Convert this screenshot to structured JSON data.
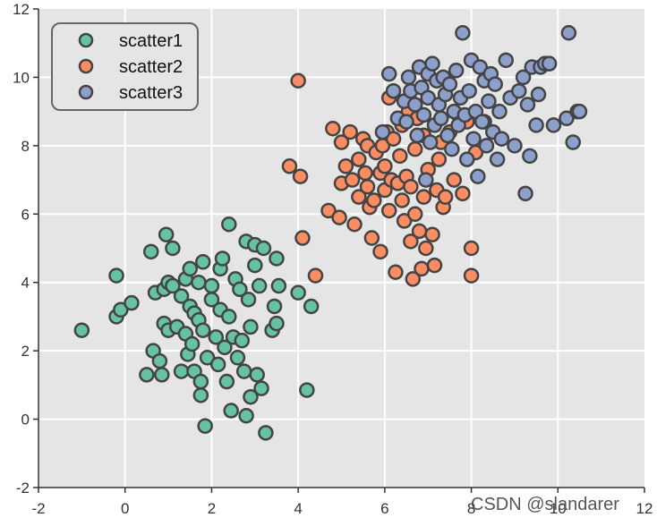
{
  "chart_data": {
    "type": "scatter",
    "title": "",
    "xlabel": "",
    "ylabel": "",
    "xlim": [
      -2,
      12
    ],
    "ylim": [
      -2,
      12
    ],
    "xticks": [
      -2,
      0,
      2,
      4,
      6,
      8,
      10,
      12
    ],
    "yticks": [
      -2,
      0,
      2,
      4,
      6,
      8,
      10,
      12
    ],
    "grid": true,
    "legend_position": "top-left",
    "series": [
      {
        "name": "scatter1",
        "color": "#66c2a5",
        "points": [
          [
            -1.0,
            2.6
          ],
          [
            -0.2,
            4.2
          ],
          [
            -0.2,
            3.0
          ],
          [
            -0.1,
            3.2
          ],
          [
            0.15,
            3.4
          ],
          [
            0.5,
            1.3
          ],
          [
            0.6,
            4.9
          ],
          [
            0.65,
            2.0
          ],
          [
            0.7,
            3.7
          ],
          [
            0.8,
            1.7
          ],
          [
            0.85,
            1.3
          ],
          [
            0.9,
            2.8
          ],
          [
            0.9,
            3.8
          ],
          [
            0.95,
            5.4
          ],
          [
            1.0,
            4.0
          ],
          [
            1.0,
            2.6
          ],
          [
            1.1,
            3.9
          ],
          [
            1.1,
            5.0
          ],
          [
            1.2,
            2.7
          ],
          [
            1.3,
            1.4
          ],
          [
            1.3,
            3.6
          ],
          [
            1.4,
            2.5
          ],
          [
            1.4,
            4.1
          ],
          [
            1.45,
            1.9
          ],
          [
            1.5,
            3.3
          ],
          [
            1.5,
            4.4
          ],
          [
            1.55,
            2.2
          ],
          [
            1.6,
            1.4
          ],
          [
            1.6,
            3.1
          ],
          [
            1.7,
            4.0
          ],
          [
            1.7,
            2.9
          ],
          [
            1.75,
            1.1
          ],
          [
            1.75,
            0.7
          ],
          [
            1.8,
            2.6
          ],
          [
            1.8,
            4.6
          ],
          [
            1.85,
            -0.2
          ],
          [
            1.9,
            1.8
          ],
          [
            2.0,
            3.5
          ],
          [
            2.0,
            3.9
          ],
          [
            2.1,
            2.4
          ],
          [
            2.15,
            1.6
          ],
          [
            2.2,
            4.4
          ],
          [
            2.2,
            3.2
          ],
          [
            2.25,
            4.7
          ],
          [
            2.3,
            2.1
          ],
          [
            2.35,
            1.1
          ],
          [
            2.4,
            5.7
          ],
          [
            2.4,
            3.0
          ],
          [
            2.45,
            0.25
          ],
          [
            2.5,
            2.4
          ],
          [
            2.55,
            4.1
          ],
          [
            2.6,
            1.8
          ],
          [
            2.65,
            3.8
          ],
          [
            2.7,
            2.3
          ],
          [
            2.75,
            1.4
          ],
          [
            2.8,
            0.1
          ],
          [
            2.8,
            5.2
          ],
          [
            2.85,
            3.5
          ],
          [
            2.9,
            2.7
          ],
          [
            2.9,
            0.65
          ],
          [
            3.0,
            4.5
          ],
          [
            3.0,
            5.1
          ],
          [
            3.05,
            1.3
          ],
          [
            3.1,
            3.9
          ],
          [
            3.15,
            0.9
          ],
          [
            3.2,
            5.0
          ],
          [
            3.25,
            -0.4
          ],
          [
            3.4,
            2.6
          ],
          [
            3.45,
            3.3
          ],
          [
            3.5,
            2.8
          ],
          [
            3.5,
            4.7
          ],
          [
            3.55,
            3.9
          ],
          [
            4.0,
            3.7
          ],
          [
            4.2,
            0.85
          ],
          [
            4.3,
            3.3
          ]
        ]
      },
      {
        "name": "scatter2",
        "color": "#fc8d62",
        "points": [
          [
            3.8,
            7.4
          ],
          [
            4.0,
            9.9
          ],
          [
            4.05,
            7.1
          ],
          [
            4.1,
            5.3
          ],
          [
            4.4,
            4.2
          ],
          [
            4.7,
            6.1
          ],
          [
            4.8,
            8.5
          ],
          [
            4.95,
            5.9
          ],
          [
            5.0,
            6.9
          ],
          [
            5.0,
            8.1
          ],
          [
            5.1,
            7.4
          ],
          [
            5.2,
            8.4
          ],
          [
            5.25,
            7.0
          ],
          [
            5.3,
            5.7
          ],
          [
            5.4,
            7.6
          ],
          [
            5.4,
            6.5
          ],
          [
            5.5,
            8.2
          ],
          [
            5.55,
            7.2
          ],
          [
            5.6,
            6.8
          ],
          [
            5.6,
            8.0
          ],
          [
            5.65,
            6.2
          ],
          [
            5.7,
            5.3
          ],
          [
            5.75,
            6.4
          ],
          [
            5.8,
            7.8
          ],
          [
            5.9,
            7.2
          ],
          [
            5.9,
            4.9
          ],
          [
            5.95,
            8.0
          ],
          [
            6.0,
            7.4
          ],
          [
            6.0,
            6.7
          ],
          [
            6.05,
            8.4
          ],
          [
            6.1,
            6.1
          ],
          [
            6.1,
            9.4
          ],
          [
            6.15,
            7.0
          ],
          [
            6.2,
            8.2
          ],
          [
            6.25,
            4.3
          ],
          [
            6.3,
            6.9
          ],
          [
            6.35,
            7.7
          ],
          [
            6.4,
            8.6
          ],
          [
            6.4,
            6.4
          ],
          [
            6.45,
            5.8
          ],
          [
            6.5,
            7.1
          ],
          [
            6.55,
            9.0
          ],
          [
            6.6,
            6.8
          ],
          [
            6.6,
            5.2
          ],
          [
            6.65,
            4.1
          ],
          [
            6.7,
            7.9
          ],
          [
            6.7,
            6.0
          ],
          [
            6.75,
            8.8
          ],
          [
            6.8,
            5.5
          ],
          [
            6.85,
            4.4
          ],
          [
            6.9,
            6.5
          ],
          [
            6.9,
            8.3
          ],
          [
            6.95,
            5.0
          ],
          [
            7.0,
            7.3
          ],
          [
            7.1,
            5.4
          ],
          [
            7.15,
            4.5
          ],
          [
            7.2,
            6.7
          ],
          [
            7.25,
            7.6
          ],
          [
            7.3,
            8.1
          ],
          [
            7.35,
            6.2
          ],
          [
            7.4,
            6.5
          ],
          [
            7.5,
            8.4
          ],
          [
            7.6,
            7.0
          ],
          [
            7.7,
            8.9
          ],
          [
            7.8,
            6.6
          ],
          [
            7.9,
            8.7
          ],
          [
            8.0,
            4.2
          ],
          [
            8.0,
            5.0
          ],
          [
            8.1,
            7.8
          ],
          [
            8.3,
            8.7
          ]
        ]
      },
      {
        "name": "scatter3",
        "color": "#8da0cb",
        "points": [
          [
            5.95,
            8.4
          ],
          [
            6.1,
            10.1
          ],
          [
            6.2,
            9.6
          ],
          [
            6.3,
            8.8
          ],
          [
            6.45,
            9.3
          ],
          [
            6.5,
            8.7
          ],
          [
            6.55,
            10.0
          ],
          [
            6.6,
            9.6
          ],
          [
            6.7,
            9.2
          ],
          [
            6.75,
            8.3
          ],
          [
            6.8,
            10.3
          ],
          [
            6.85,
            9.7
          ],
          [
            6.9,
            8.9
          ],
          [
            6.95,
            7.0
          ],
          [
            7.0,
            10.1
          ],
          [
            7.0,
            9.4
          ],
          [
            7.05,
            8.1
          ],
          [
            7.1,
            10.4
          ],
          [
            7.15,
            8.6
          ],
          [
            7.2,
            9.9
          ],
          [
            7.25,
            9.2
          ],
          [
            7.3,
            8.8
          ],
          [
            7.35,
            10.0
          ],
          [
            7.4,
            9.5
          ],
          [
            7.45,
            8.3
          ],
          [
            7.5,
            9.8
          ],
          [
            7.55,
            7.9
          ],
          [
            7.6,
            9.0
          ],
          [
            7.65,
            10.2
          ],
          [
            7.7,
            8.6
          ],
          [
            7.75,
            9.4
          ],
          [
            7.8,
            11.3
          ],
          [
            7.85,
            8.9
          ],
          [
            7.9,
            7.6
          ],
          [
            7.95,
            9.6
          ],
          [
            8.0,
            10.5
          ],
          [
            8.05,
            8.2
          ],
          [
            8.1,
            9.0
          ],
          [
            8.15,
            7.1
          ],
          [
            8.2,
            10.3
          ],
          [
            8.25,
            8.7
          ],
          [
            8.3,
            9.9
          ],
          [
            8.35,
            8.0
          ],
          [
            8.4,
            9.3
          ],
          [
            8.45,
            10.1
          ],
          [
            8.5,
            8.4
          ],
          [
            8.55,
            9.8
          ],
          [
            8.6,
            7.6
          ],
          [
            8.65,
            9.0
          ],
          [
            8.7,
            8.2
          ],
          [
            8.8,
            10.5
          ],
          [
            8.9,
            9.4
          ],
          [
            9.0,
            8.0
          ],
          [
            9.1,
            9.6
          ],
          [
            9.2,
            10.0
          ],
          [
            9.25,
            6.6
          ],
          [
            9.3,
            9.2
          ],
          [
            9.35,
            7.7
          ],
          [
            9.4,
            10.3
          ],
          [
            9.5,
            8.6
          ],
          [
            9.55,
            9.5
          ],
          [
            9.6,
            10.3
          ],
          [
            9.7,
            10.4
          ],
          [
            9.8,
            10.4
          ],
          [
            9.9,
            8.6
          ],
          [
            10.2,
            8.8
          ],
          [
            10.25,
            11.3
          ],
          [
            10.35,
            8.1
          ],
          [
            10.45,
            9.0
          ],
          [
            10.5,
            9.0
          ]
        ]
      }
    ]
  },
  "watermark": "CSDN @slandarer"
}
